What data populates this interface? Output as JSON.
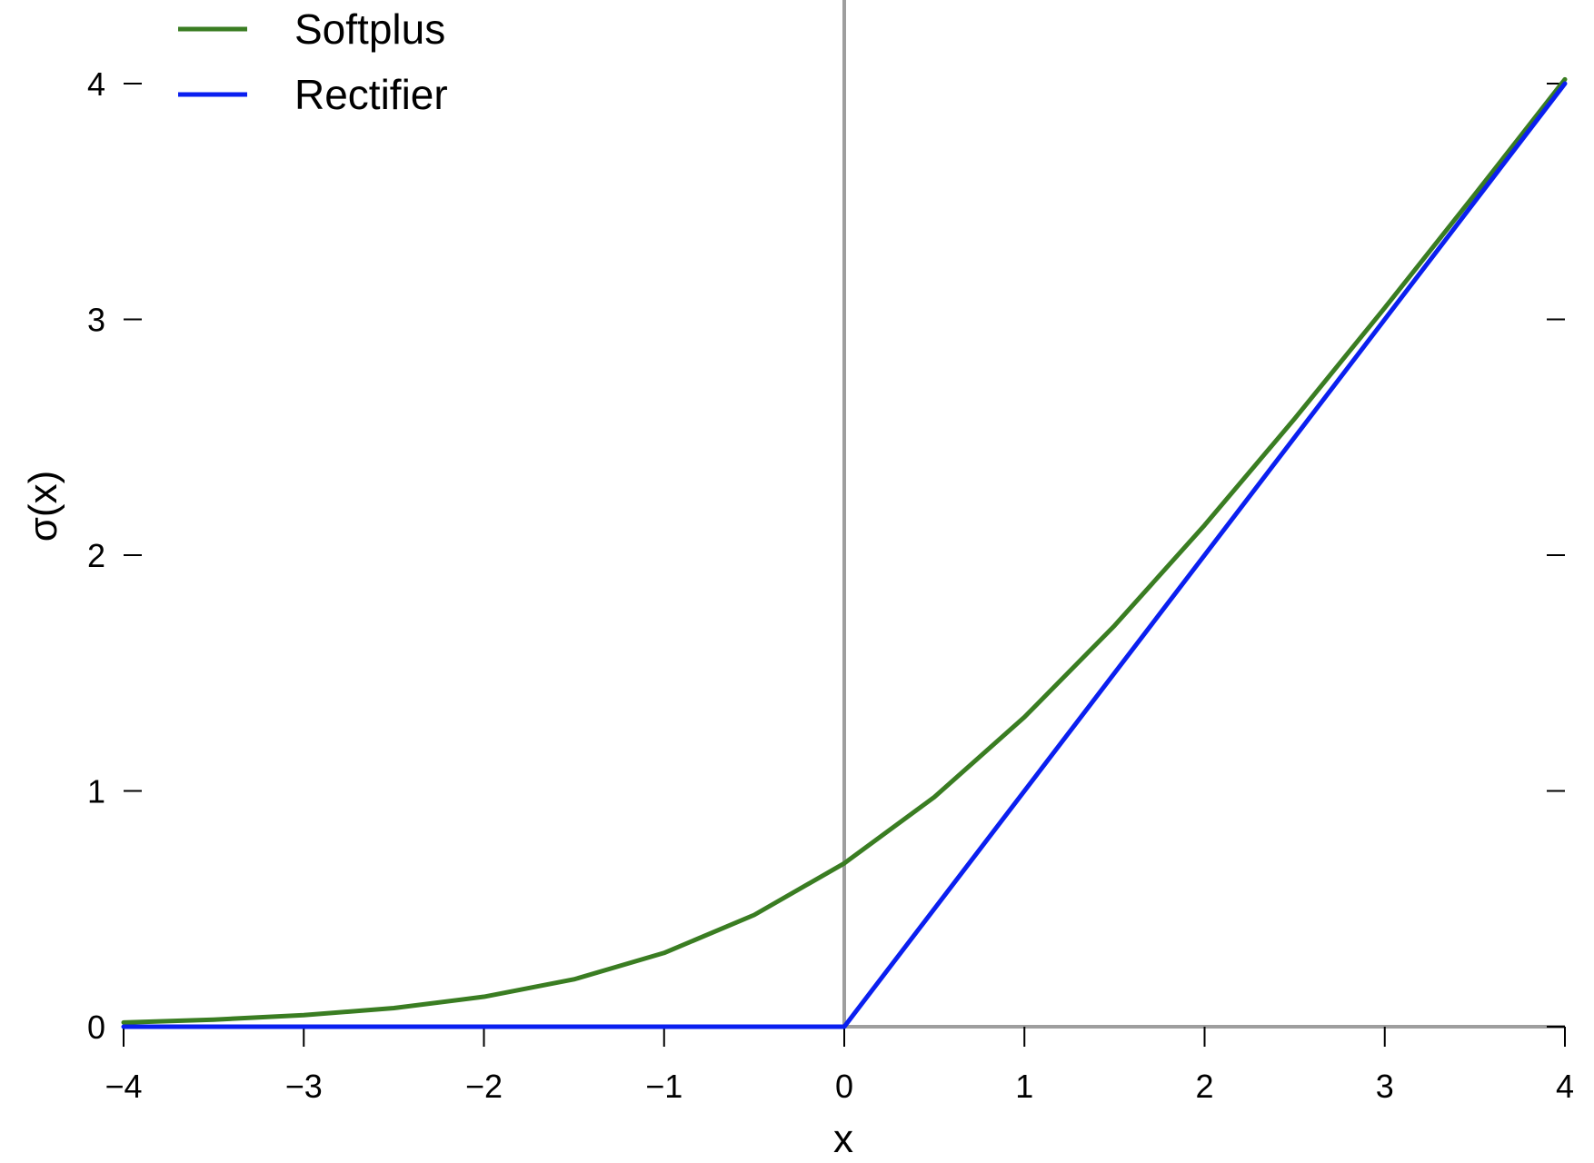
{
  "chart_data": {
    "type": "line",
    "title": "",
    "xlabel": "x",
    "ylabel": "σ(x)",
    "xlim": [
      -4,
      4
    ],
    "ylim": [
      0,
      4
    ],
    "x_ticks": [
      -4,
      -3,
      -2,
      -1,
      0,
      1,
      2,
      3,
      4
    ],
    "x_tick_labels": [
      "−4",
      "−3",
      "−2",
      "−1",
      "0",
      "1",
      "2",
      "3",
      "4"
    ],
    "y_ticks": [
      0,
      1,
      2,
      3,
      4
    ],
    "y_tick_labels": [
      "0",
      "1",
      "2",
      "3",
      "4"
    ],
    "grid": false,
    "legend_position": "top-left",
    "reference_lines": {
      "vertical_x": 0,
      "horizontal_y": 0,
      "color": "#9e9e9e"
    },
    "series": [
      {
        "name": "Softplus",
        "color": "#3a7d22",
        "x": [
          -4,
          -3.5,
          -3,
          -2.5,
          -2,
          -1.5,
          -1,
          -0.5,
          0,
          0.5,
          1,
          1.5,
          2,
          2.5,
          3,
          3.5,
          4
        ],
        "y": [
          0.018,
          0.03,
          0.049,
          0.079,
          0.127,
          0.201,
          0.313,
          0.474,
          0.693,
          0.974,
          1.313,
          1.701,
          2.127,
          2.579,
          3.049,
          3.53,
          4.018
        ]
      },
      {
        "name": "Rectifier",
        "color": "#0a1ff0",
        "x": [
          -4,
          0,
          4
        ],
        "y": [
          0,
          0,
          4
        ]
      }
    ]
  }
}
